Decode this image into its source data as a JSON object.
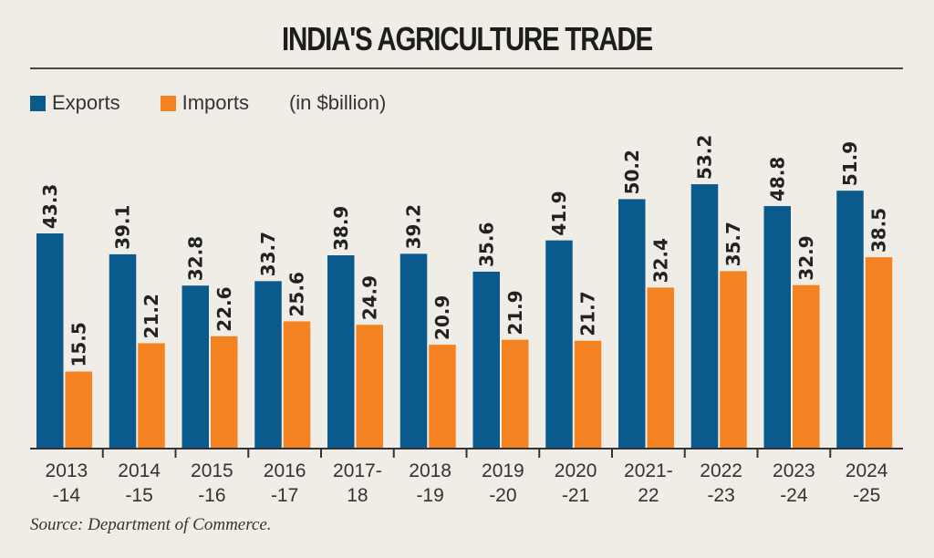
{
  "chart_data": {
    "type": "bar",
    "title": "INDIA'S AGRICULTURE TRADE",
    "unit_note": "(in $billion)",
    "categories": [
      [
        "2013",
        "-14"
      ],
      [
        "2014",
        "-15"
      ],
      [
        "2015",
        "-16"
      ],
      [
        "2016",
        "-17"
      ],
      [
        "2017-",
        "18"
      ],
      [
        "2018",
        "-19"
      ],
      [
        "2019",
        "-20"
      ],
      [
        "2020",
        "-21"
      ],
      [
        "2021-",
        "22"
      ],
      [
        "2022",
        "-23"
      ],
      [
        "2023",
        "-24"
      ],
      [
        "2024",
        "-25"
      ]
    ],
    "series": [
      {
        "name": "Exports",
        "color": "#0b5a8e",
        "values": [
          43.3,
          39.1,
          32.8,
          33.7,
          38.9,
          39.2,
          35.6,
          41.9,
          50.2,
          53.2,
          48.8,
          51.9
        ]
      },
      {
        "name": "Imports",
        "color": "#f58220",
        "values": [
          15.5,
          21.2,
          22.6,
          25.6,
          24.9,
          20.9,
          21.9,
          21.7,
          32.4,
          35.7,
          32.9,
          38.5
        ]
      }
    ],
    "ylim": [
      0,
      60
    ],
    "grid": false,
    "legend": "top-left",
    "source": "Source: Department of Commerce."
  }
}
